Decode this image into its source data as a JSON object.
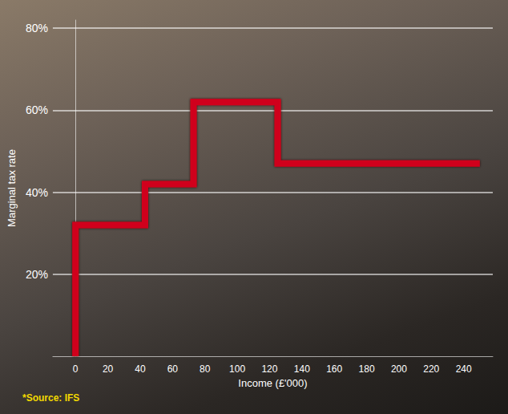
{
  "chart_data": {
    "type": "line",
    "x": [
      0,
      0,
      43,
      43,
      73,
      73,
      125,
      125,
      250
    ],
    "values": [
      0,
      32,
      32,
      42,
      42,
      62,
      62,
      47,
      47
    ],
    "color": "#d0021b",
    "xlabel": "Income (£'000)",
    "ylabel": "Marginal tax rate",
    "xlim": [
      -14,
      258
    ],
    "xticks": [
      0,
      20,
      40,
      60,
      80,
      100,
      120,
      140,
      160,
      180,
      200,
      220,
      240
    ],
    "ylim": [
      0,
      82
    ],
    "yticks": [
      {
        "value": 20,
        "label": "20%"
      },
      {
        "value": 40,
        "label": "40%"
      },
      {
        "value": 60,
        "label": "60%"
      },
      {
        "value": 80,
        "label": "80%"
      }
    ],
    "grid": true,
    "source": "*Source: IFS"
  }
}
